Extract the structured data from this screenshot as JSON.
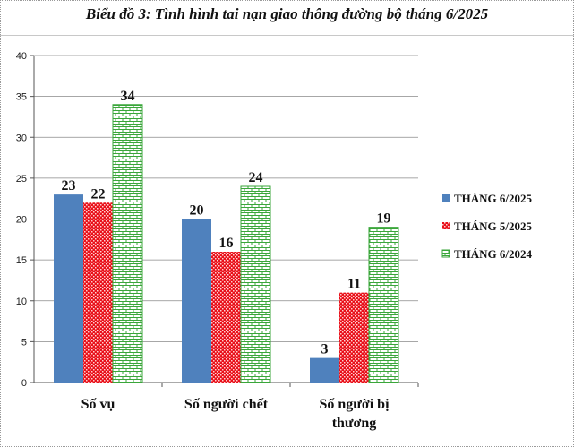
{
  "chart_data": {
    "type": "bar",
    "title": "Biểu đồ 3: Tình hình tai nạn giao thông đường bộ tháng 6/2025",
    "categories": [
      [
        "Số vụ"
      ],
      [
        "Số người chết"
      ],
      [
        "Số người bị",
        "thương"
      ]
    ],
    "series": [
      {
        "name": "THÁNG 6/2025",
        "values": [
          23,
          20,
          3
        ],
        "color": "#4f81bd",
        "pattern": "solid"
      },
      {
        "name": "THÁNG 5/2025",
        "values": [
          22,
          16,
          11
        ],
        "color": "#e8101a",
        "pattern": "dots"
      },
      {
        "name": "THÁNG 6/2024",
        "values": [
          34,
          24,
          19
        ],
        "color": "#3aa63a",
        "pattern": "brick"
      }
    ],
    "ylim": [
      0,
      40
    ],
    "yticks": [
      0,
      5,
      10,
      15,
      20,
      25,
      30,
      35,
      40
    ],
    "grid": true,
    "legend": "right"
  }
}
